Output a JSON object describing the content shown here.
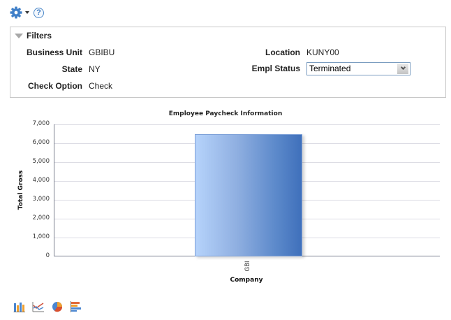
{
  "toolbar": {
    "settings_icon": "gear-icon",
    "menu_icon": "caret-down-icon",
    "help_label": "?"
  },
  "filters": {
    "title": "Filters",
    "fields": [
      {
        "label": "Business Unit",
        "value": "GBIBU"
      },
      {
        "label": "State",
        "value": "NY"
      },
      {
        "label": "Check Option",
        "value": "Check"
      },
      {
        "label": "Location",
        "value": "KUNY00"
      },
      {
        "label": "Empl Status",
        "value": "Terminated"
      }
    ]
  },
  "chart_data": {
    "type": "bar",
    "title": "Employee Paycheck Information",
    "xlabel": "Company",
    "ylabel": "Total Gross",
    "categories": [
      "GBI"
    ],
    "values": [
      6480
    ],
    "ylim": [
      0,
      7000
    ],
    "yticks": [
      "0",
      "1,000",
      "2,000",
      "3,000",
      "4,000",
      "5,000",
      "6,000",
      "7,000"
    ],
    "grid": true,
    "legend": "none",
    "bar_color": "#5d8acb"
  },
  "chart_type_buttons": [
    {
      "name": "bar-chart-icon"
    },
    {
      "name": "line-chart-icon"
    },
    {
      "name": "pie-chart-icon"
    },
    {
      "name": "horizontal-bar-chart-icon"
    }
  ]
}
